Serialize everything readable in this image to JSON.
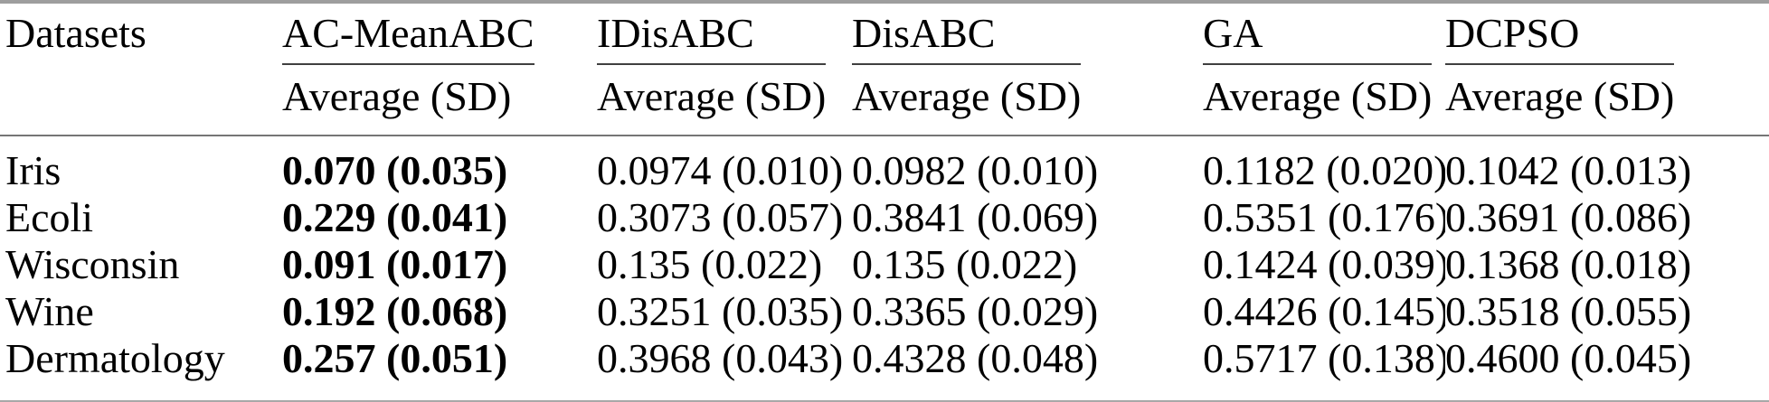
{
  "table": {
    "datasets_header": "Datasets",
    "subheader_label": "Average (SD)",
    "methods": [
      "AC-MeanABC",
      "IDisABC",
      "DisABC",
      "GA",
      "DCPSO"
    ],
    "bold_column_index": 0,
    "rows": [
      {
        "dataset": "Iris",
        "values": [
          "0.070 (0.035)",
          "0.0974 (0.010)",
          "0.0982 (0.010)",
          "0.1182 (0.020)",
          "0.1042 (0.013)"
        ]
      },
      {
        "dataset": "Ecoli",
        "values": [
          "0.229 (0.041)",
          "0.3073 (0.057)",
          "0.3841 (0.069)",
          "0.5351 (0.176)",
          "0.3691 (0.086)"
        ]
      },
      {
        "dataset": "Wisconsin",
        "values": [
          "0.091 (0.017)",
          "0.135 (0.022)",
          "0.135 (0.022)",
          "0.1424 (0.039)",
          "0.1368 (0.018)"
        ]
      },
      {
        "dataset": "Wine",
        "values": [
          "0.192 (0.068)",
          "0.3251 (0.035)",
          "0.3365 (0.029)",
          "0.4426 (0.145)",
          "0.3518 (0.055)"
        ]
      },
      {
        "dataset": "Dermatology",
        "values": [
          "0.257 (0.051)",
          "0.3968 (0.043)",
          "0.4328 (0.048)",
          "0.5717 (0.138)",
          "0.4600 (0.045)"
        ]
      }
    ],
    "colors": {
      "text": "#000000",
      "rule_top": "#9e9e9e",
      "rule_header": "#757575",
      "rule_cmid": "#3f3f3f",
      "rule_bottom": "#a8a8a8"
    }
  }
}
